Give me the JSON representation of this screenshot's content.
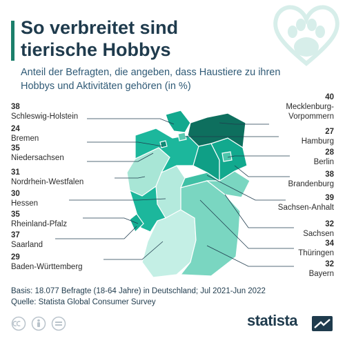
{
  "title_line1": "So verbreitet sind",
  "title_line2": "tierische Hobbys",
  "subtitle": "Anteil der Befragten, die angeben, dass Haustiere zu ihren Hobbys und Aktivitäten gehören (in %)",
  "regions": [
    {
      "name": "Schleswig-Holstein",
      "value": 38,
      "color": "#12a98e"
    },
    {
      "name": "Bremen",
      "value": 24,
      "color": "#0f8a75"
    },
    {
      "name": "Niedersachsen",
      "value": 35,
      "color": "#1cb79c"
    },
    {
      "name": "Nordrhein-Westfalen",
      "value": 31,
      "color": "#a8e6d6"
    },
    {
      "name": "Hessen",
      "value": 30,
      "color": "#b4eadd"
    },
    {
      "name": "Rheinland-Pfalz",
      "value": 35,
      "color": "#1cb79c"
    },
    {
      "name": "Saarland",
      "value": 37,
      "color": "#14ad92"
    },
    {
      "name": "Baden-Württemberg",
      "value": 29,
      "color": "#c4efe5"
    },
    {
      "name": "Mecklenburg-Vorpommern",
      "value": 40,
      "color": "#0e6f5e"
    },
    {
      "name": "Hamburg",
      "value": 27,
      "color": "#59c9b0"
    },
    {
      "name": "Berlin",
      "value": 28,
      "color": "#4dc5ab"
    },
    {
      "name": "Brandenburg",
      "value": 38,
      "color": "#12a98e"
    },
    {
      "name": "Sachsen-Anhalt",
      "value": 39,
      "color": "#0f9f86"
    },
    {
      "name": "Sachsen",
      "value": 32,
      "color": "#7ad6c1"
    },
    {
      "name": "Thüringen",
      "value": 34,
      "color": "#3fc0a5"
    },
    {
      "name": "Bayern",
      "value": 32,
      "color": "#7ad6c1"
    }
  ],
  "labels": {
    "mv_line1": "Mecklenburg-",
    "mv_line2": "Vorpommern"
  },
  "footer_basis": "Basis: 18.077 Befragte (18-64 Jahre) in Deutschland; Jul 2021-Jun 2022",
  "footer_source": "Quelle: Statista Global Consumer Survey",
  "brand": "statista",
  "icons": [
    "paw-heart-icon",
    "cc-icon",
    "person-icon",
    "equals-icon",
    "statista-logo-icon"
  ]
}
